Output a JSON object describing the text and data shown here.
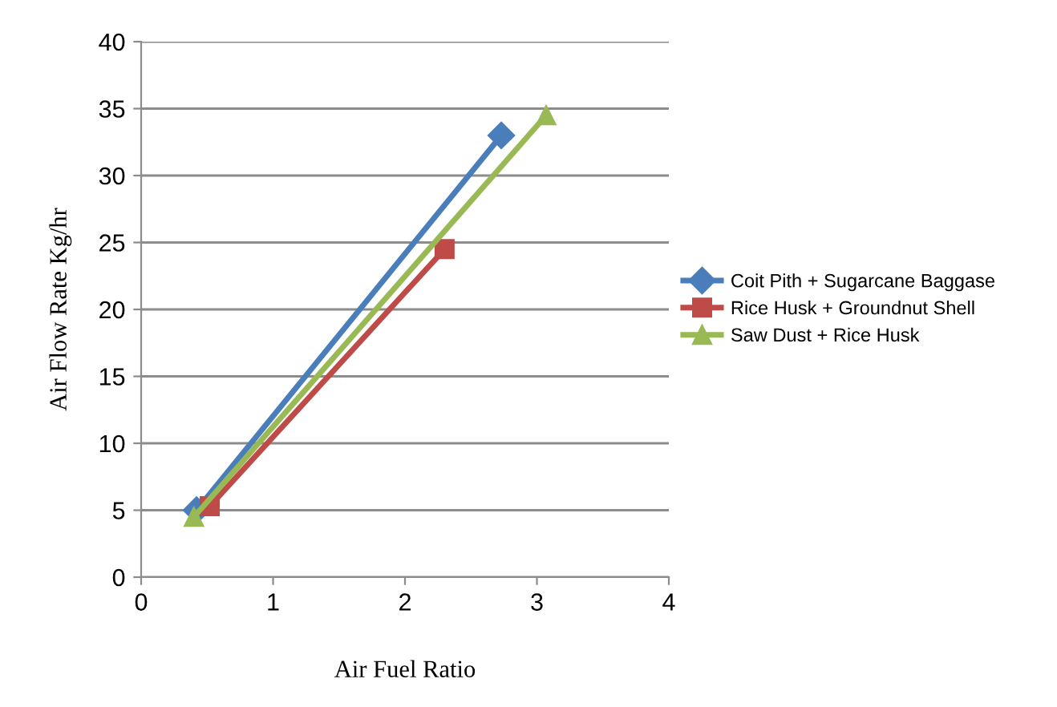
{
  "chart_data": {
    "type": "line",
    "xlabel": "Air Fuel Ratio",
    "ylabel": "Air Flow Rate Kg/hr",
    "series": [
      {
        "name": "Coit Pith + Sugarcane Baggase",
        "color": "#4a7ebb",
        "marker": "diamond",
        "x": [
          0.42,
          2.73
        ],
        "values": [
          5.0,
          33
        ]
      },
      {
        "name": "Rice Husk + Groundnut Shell",
        "color": "#be4b48",
        "marker": "square",
        "x": [
          0.52,
          2.3
        ],
        "values": [
          5.3,
          24.5
        ]
      },
      {
        "name": "Saw Dust + Rice Husk",
        "color": "#98b954",
        "marker": "triangle",
        "x": [
          0.4,
          3.07
        ],
        "values": [
          4.5,
          34.5
        ]
      }
    ],
    "xlim": [
      0,
      4
    ],
    "xticks": [
      0,
      1,
      2,
      3,
      4
    ],
    "ylim": [
      0,
      40
    ],
    "yticks": [
      0,
      5,
      10,
      15,
      20,
      25,
      30,
      35,
      40
    ],
    "grid": "y",
    "legend": "right"
  }
}
